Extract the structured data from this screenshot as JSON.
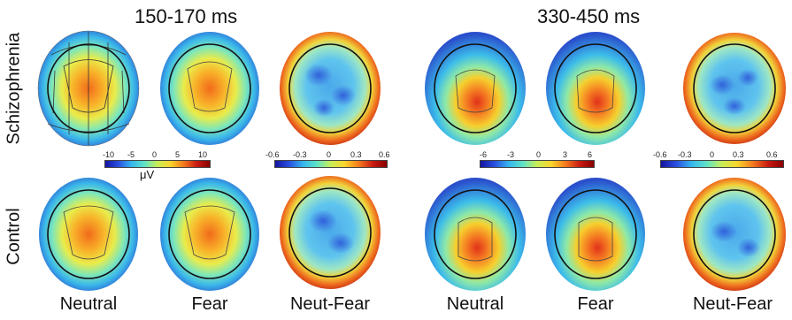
{
  "titles": {
    "early": "150-170 ms",
    "late": "330-450 ms"
  },
  "rows": {
    "schizophrenia": "Schizophrenia",
    "control": "Control"
  },
  "columns": [
    "Neutral",
    "Fear",
    "Neut-Fear",
    "Neutral",
    "Fear",
    "Neut-Fear"
  ],
  "colorbars": [
    {
      "ticks": [
        "-10",
        "-5",
        "0",
        "5",
        "10"
      ],
      "unit": "μV"
    },
    {
      "ticks": [
        "-0.6",
        "-0.3",
        "0",
        "0.3",
        "0.6"
      ]
    },
    {
      "ticks": [
        "-6",
        "-3",
        "0",
        "3",
        "6"
      ]
    },
    {
      "ticks": [
        "-0.6",
        "-0.3",
        "0",
        "0.3",
        "0.6"
      ]
    }
  ],
  "colors": {
    "low": "#1414a0",
    "mid": "#5fe3c6",
    "high": "#8a0000"
  }
}
